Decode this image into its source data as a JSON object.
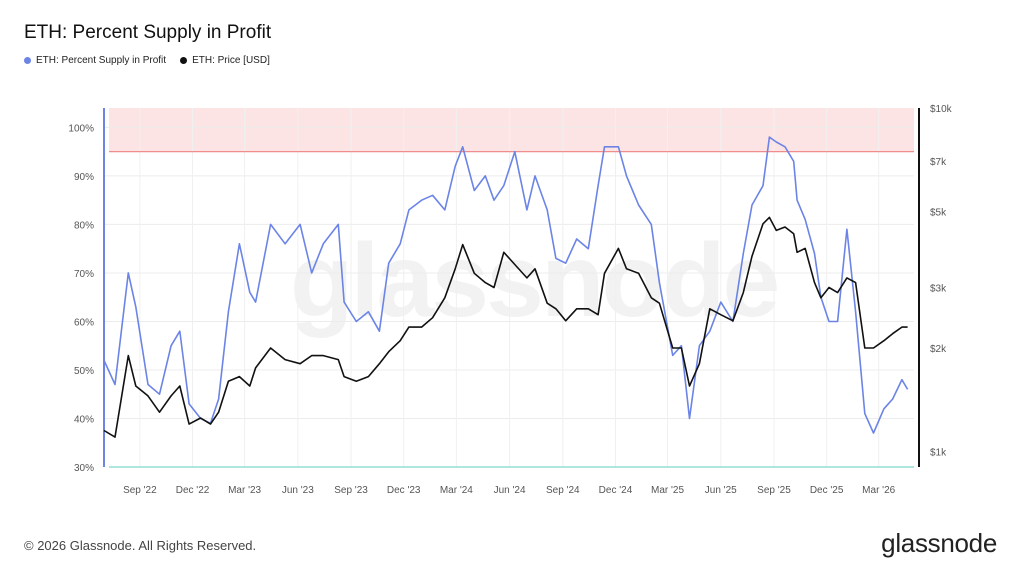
{
  "header": {
    "title": "ETH: Percent Supply in Profit"
  },
  "legend": [
    {
      "label": "ETH: Percent Supply in Profit",
      "color": "#6b84e6"
    },
    {
      "label": "ETH: Price [USD]",
      "color": "#111111"
    }
  ],
  "footer": {
    "copyright": "© 2026 Glassnode. All Rights Reserved.",
    "brand": "glassnode",
    "watermark": "glassnode"
  },
  "chart_data": {
    "type": "line",
    "title": "ETH: Percent Supply in Profit",
    "x_range": [
      "2022-07-01",
      "2026-05-01"
    ],
    "x_ticks": [
      "Sep '22",
      "Dec '22",
      "Mar '23",
      "Jun '23",
      "Sep '23",
      "Dec '23",
      "Mar '24",
      "Jun '24",
      "Sep '24",
      "Dec '24",
      "Mar '25",
      "Jun '25",
      "Sep '25",
      "Dec '25",
      "Mar '26"
    ],
    "x_tick_dates": [
      "2022-09-01",
      "2022-12-01",
      "2023-03-01",
      "2023-06-01",
      "2023-09-01",
      "2023-12-01",
      "2024-03-01",
      "2024-06-01",
      "2024-09-01",
      "2024-12-01",
      "2025-03-01",
      "2025-06-01",
      "2025-09-01",
      "2025-12-01",
      "2026-03-01"
    ],
    "y_left": {
      "label": "",
      "ticks": [
        "100%",
        "90%",
        "80%",
        "70%",
        "60%",
        "50%",
        "40%",
        "30%"
      ],
      "range": [
        30,
        104
      ]
    },
    "y_right": {
      "label": "",
      "scale": "log",
      "ticks": [
        "$10k",
        "$7k",
        "$5k",
        "$3k",
        "$2k",
        "$1k"
      ],
      "tick_values": [
        10000,
        7000,
        5000,
        3000,
        2000,
        1000
      ],
      "range": [
        900,
        10000
      ]
    },
    "bands": [
      {
        "from": 95,
        "to": 104,
        "color": "#fde4e4"
      }
    ],
    "thresholds": [
      {
        "value": 95,
        "color": "#f08c8c"
      },
      {
        "value": 30,
        "color": "#7fd8cc"
      }
    ],
    "grid": true,
    "legend_position": "top-left",
    "series": [
      {
        "name": "ETH: Percent Supply in Profit",
        "color": "#6b84e6",
        "axis": "left",
        "x": [
          "2022-07-01",
          "2022-07-20",
          "2022-08-12",
          "2022-08-25",
          "2022-09-15",
          "2022-10-05",
          "2022-10-25",
          "2022-11-09",
          "2022-11-25",
          "2022-12-15",
          "2023-01-01",
          "2023-01-15",
          "2023-02-01",
          "2023-02-20",
          "2023-03-10",
          "2023-03-20",
          "2023-04-15",
          "2023-05-10",
          "2023-06-05",
          "2023-06-25",
          "2023-07-15",
          "2023-08-10",
          "2023-08-20",
          "2023-09-10",
          "2023-10-01",
          "2023-10-20",
          "2023-11-05",
          "2023-11-25",
          "2023-12-10",
          "2024-01-01",
          "2024-01-20",
          "2024-02-10",
          "2024-02-28",
          "2024-03-12",
          "2024-04-01",
          "2024-04-20",
          "2024-05-05",
          "2024-05-22",
          "2024-06-10",
          "2024-07-01",
          "2024-07-15",
          "2024-08-05",
          "2024-08-20",
          "2024-09-06",
          "2024-09-25",
          "2024-10-15",
          "2024-11-01",
          "2024-11-12",
          "2024-12-06",
          "2024-12-20",
          "2025-01-10",
          "2025-02-01",
          "2025-02-15",
          "2025-03-10",
          "2025-03-25",
          "2025-04-08",
          "2025-04-25",
          "2025-05-13",
          "2025-06-01",
          "2025-06-22",
          "2025-07-10",
          "2025-07-25",
          "2025-08-13",
          "2025-08-24",
          "2025-09-05",
          "2025-09-20",
          "2025-10-05",
          "2025-10-11",
          "2025-10-25",
          "2025-11-10",
          "2025-11-21",
          "2025-12-05",
          "2025-12-20",
          "2026-01-05",
          "2026-01-20",
          "2026-02-05",
          "2026-02-20",
          "2026-03-10",
          "2026-03-25",
          "2026-04-10",
          "2026-04-20"
        ],
        "y": [
          52,
          47,
          70,
          63,
          47,
          45,
          55,
          58,
          43,
          40,
          39,
          44,
          62,
          76,
          66,
          64,
          80,
          76,
          80,
          70,
          76,
          80,
          64,
          60,
          62,
          58,
          72,
          76,
          83,
          85,
          86,
          83,
          92,
          96,
          87,
          90,
          85,
          88,
          95,
          83,
          90,
          83,
          73,
          72,
          77,
          75,
          88,
          96,
          96,
          90,
          84,
          80,
          68,
          53,
          55,
          40,
          55,
          58,
          64,
          60,
          74,
          84,
          88,
          98,
          97,
          96,
          93,
          85,
          81,
          74,
          65,
          60,
          60,
          79,
          62,
          41,
          37,
          42,
          44,
          48,
          46
        ]
      },
      {
        "name": "ETH: Price [USD]",
        "color": "#111111",
        "axis": "right",
        "x": [
          "2022-07-01",
          "2022-07-20",
          "2022-08-12",
          "2022-08-25",
          "2022-09-15",
          "2022-10-05",
          "2022-10-25",
          "2022-11-09",
          "2022-11-25",
          "2022-12-15",
          "2023-01-01",
          "2023-01-15",
          "2023-02-01",
          "2023-02-20",
          "2023-03-10",
          "2023-03-20",
          "2023-04-15",
          "2023-05-10",
          "2023-06-05",
          "2023-06-25",
          "2023-07-15",
          "2023-08-10",
          "2023-08-20",
          "2023-09-10",
          "2023-10-01",
          "2023-10-20",
          "2023-11-05",
          "2023-11-25",
          "2023-12-10",
          "2024-01-01",
          "2024-01-20",
          "2024-02-10",
          "2024-02-28",
          "2024-03-12",
          "2024-04-01",
          "2024-04-20",
          "2024-05-05",
          "2024-05-22",
          "2024-06-10",
          "2024-07-01",
          "2024-07-15",
          "2024-08-05",
          "2024-08-20",
          "2024-09-06",
          "2024-09-25",
          "2024-10-15",
          "2024-11-01",
          "2024-11-12",
          "2024-12-06",
          "2024-12-20",
          "2025-01-10",
          "2025-02-01",
          "2025-02-15",
          "2025-03-10",
          "2025-03-25",
          "2025-04-08",
          "2025-04-25",
          "2025-05-13",
          "2025-06-01",
          "2025-06-22",
          "2025-07-10",
          "2025-07-25",
          "2025-08-13",
          "2025-08-24",
          "2025-09-05",
          "2025-09-20",
          "2025-10-05",
          "2025-10-11",
          "2025-10-25",
          "2025-11-10",
          "2025-11-21",
          "2025-12-05",
          "2025-12-20",
          "2026-01-05",
          "2026-01-20",
          "2026-02-05",
          "2026-02-20",
          "2026-03-10",
          "2026-03-25",
          "2026-04-10",
          "2026-04-20"
        ],
        "y": [
          1150,
          1100,
          1900,
          1550,
          1450,
          1300,
          1450,
          1550,
          1200,
          1250,
          1200,
          1300,
          1600,
          1650,
          1550,
          1750,
          2000,
          1850,
          1800,
          1900,
          1900,
          1850,
          1650,
          1600,
          1650,
          1800,
          1950,
          2100,
          2300,
          2300,
          2450,
          2800,
          3400,
          4000,
          3300,
          3100,
          3000,
          3800,
          3500,
          3200,
          3400,
          2700,
          2600,
          2400,
          2600,
          2600,
          2500,
          3300,
          3900,
          3400,
          3300,
          2800,
          2700,
          2000,
          2000,
          1550,
          1800,
          2600,
          2500,
          2400,
          2900,
          3700,
          4600,
          4800,
          4400,
          4500,
          4300,
          3800,
          3900,
          3100,
          2800,
          3000,
          2900,
          3200,
          3100,
          2000,
          2000,
          2100,
          2200,
          2300,
          2300
        ]
      }
    ]
  }
}
